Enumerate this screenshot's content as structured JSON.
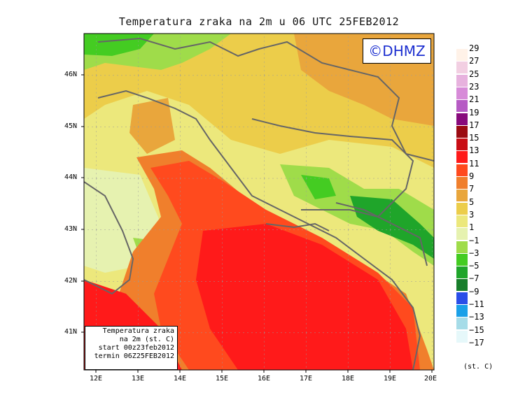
{
  "title": "Temperatura zraka na 2m u 06 UTC 25FEB2012",
  "logo": "©DHMZ",
  "info_box": {
    "line1": "Temperatura zraka",
    "line2": "na 2m (st. C)",
    "line3": "start 00z23feb2012",
    "line4": "termin 06Z25FEB2012"
  },
  "unit": "(st. C)",
  "lon_labels": [
    "12E",
    "13E",
    "14E",
    "15E",
    "16E",
    "17E",
    "18E",
    "19E",
    "20E"
  ],
  "lat_labels": [
    "46N",
    "45N",
    "44N",
    "43N",
    "42N",
    "41N"
  ],
  "legend": [
    {
      "label": "29",
      "color": "#fff2e8"
    },
    {
      "label": "27",
      "color": "#f2cfe2"
    },
    {
      "label": "25",
      "color": "#e7b2de"
    },
    {
      "label": "23",
      "color": "#d78bd8"
    },
    {
      "label": "21",
      "color": "#b65bc4"
    },
    {
      "label": "19",
      "color": "#880a7c"
    },
    {
      "label": "17",
      "color": "#9b0b12"
    },
    {
      "label": "15",
      "color": "#c90e15"
    },
    {
      "label": "13",
      "color": "#ff1a1a"
    },
    {
      "label": "11",
      "color": "#ff4a1e"
    },
    {
      "label": "9",
      "color": "#f07f2c"
    },
    {
      "label": "7",
      "color": "#e9a63c"
    },
    {
      "label": "5",
      "color": "#eccd4a"
    },
    {
      "label": "3",
      "color": "#ece87c"
    },
    {
      "label": "1",
      "color": "#e6f2b0"
    },
    {
      "label": "−1",
      "color": "#9fdc4a"
    },
    {
      "label": "−3",
      "color": "#44cc22"
    },
    {
      "label": "−5",
      "color": "#1fa52a"
    },
    {
      "label": "−7",
      "color": "#187e2b"
    },
    {
      "label": "−9",
      "color": "#2a4ee8"
    },
    {
      "label": "−11",
      "color": "#1aa0e8"
    },
    {
      "label": "−13",
      "color": "#a6dce8"
    },
    {
      "label": "−15",
      "color": "#e6f8fa"
    },
    {
      "label": "−17",
      "color": ""
    }
  ]
}
